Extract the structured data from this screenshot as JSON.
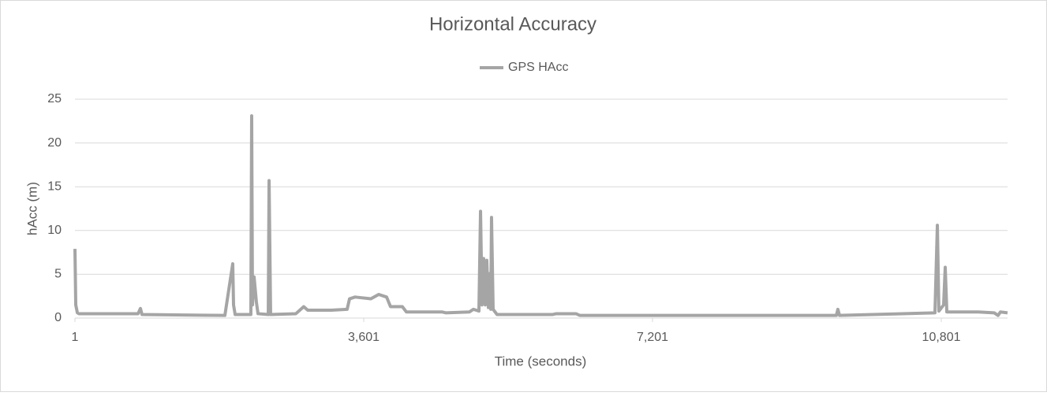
{
  "chart_data": {
    "type": "line",
    "title": "Horizontal Accuracy",
    "x_label": "Time (seconds)",
    "y_label": "hAcc (m)",
    "x": [
      1,
      11,
      31,
      50,
      788,
      817,
      837,
      1870,
      1968,
      1978,
      1998,
      2194,
      2204,
      2214,
      2234,
      2263,
      2283,
      2411,
      2421,
      2440,
      2755,
      2853,
      2903,
      3198,
      3394,
      3424,
      3493,
      3690,
      3788,
      3886,
      3935,
      4083,
      4132,
      4575,
      4624,
      4919,
      4968,
      5037,
      5057,
      5076,
      5096,
      5116,
      5135,
      5155,
      5175,
      5185,
      5194,
      5214,
      5263,
      5952,
      6001,
      6247,
      6296,
      9493,
      9512,
      9532,
      10722,
      10752,
      10771,
      10830,
      10850,
      10870,
      11263,
      11460,
      11509,
      11538,
      11627
    ],
    "series": [
      {
        "name": "GPS HAcc",
        "color": "#a5a5a5",
        "values": [
          7.9,
          1.5,
          0.6,
          0.5,
          0.5,
          1.1,
          0.4,
          0.3,
          6.2,
          1.5,
          0.4,
          0.4,
          23.1,
          1.5,
          4.7,
          1.8,
          0.5,
          0.4,
          15.7,
          0.4,
          0.5,
          1.3,
          0.9,
          0.9,
          1.0,
          2.2,
          2.4,
          2.2,
          2.7,
          2.4,
          1.3,
          1.3,
          0.7,
          0.7,
          0.6,
          0.7,
          1.0,
          0.8,
          12.2,
          1.5,
          6.8,
          1.5,
          6.6,
          1.2,
          5.1,
          1.0,
          11.5,
          1.0,
          0.4,
          0.4,
          0.5,
          0.5,
          0.3,
          0.3,
          1.0,
          0.3,
          0.6,
          10.6,
          0.8,
          1.5,
          5.8,
          0.7,
          0.7,
          0.6,
          0.3,
          0.7,
          0.6
        ]
      }
    ],
    "xlim": [
      1,
      11627
    ],
    "xticks": [
      1,
      {
        "value": 3601,
        "label": "3,601"
      },
      {
        "value": 7201,
        "label": "7,201"
      },
      {
        "value": 10801,
        "label": "10,801"
      }
    ],
    "ylim": [
      0,
      25
    ],
    "yticks": [
      0,
      5,
      10,
      15,
      20,
      25
    ],
    "grid": true,
    "legend": "top"
  }
}
